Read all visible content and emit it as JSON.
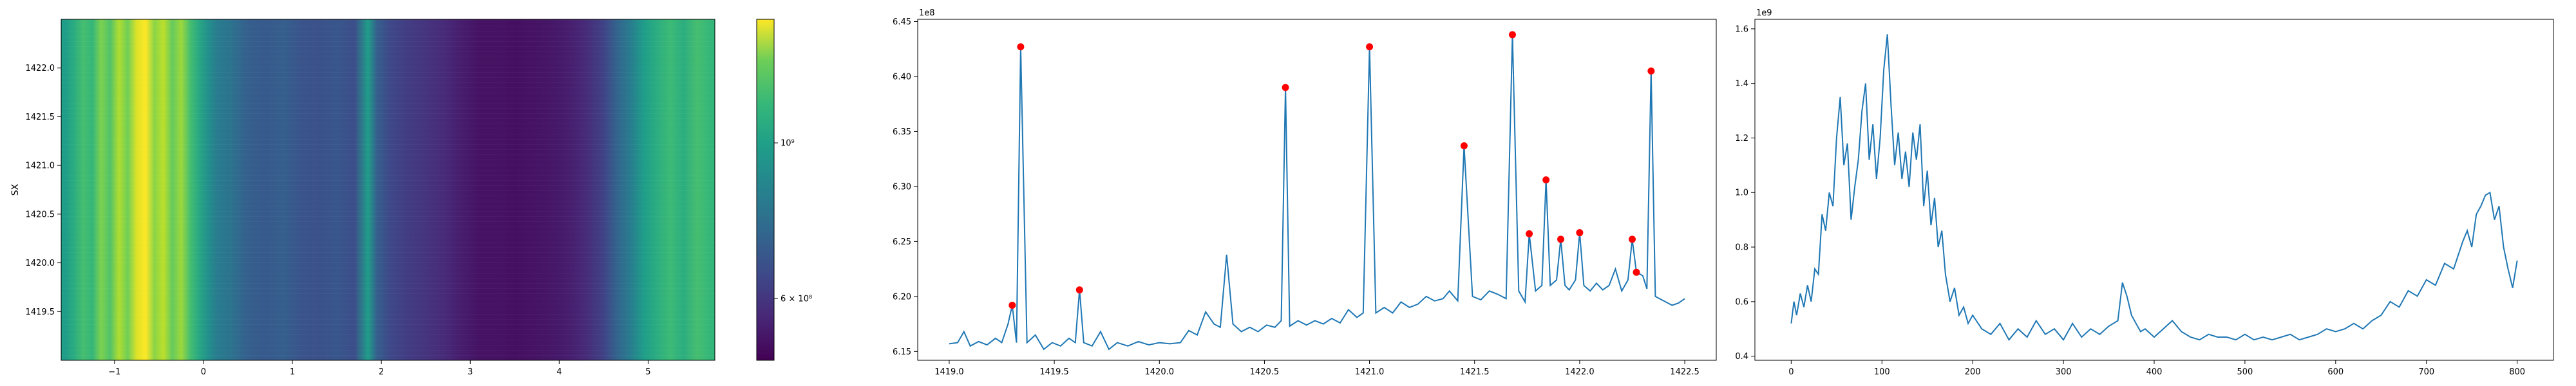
{
  "chart_data": [
    {
      "type": "heatmap",
      "xlabel": "",
      "ylabel": "SX",
      "xlim": [
        -1.6,
        5.75
      ],
      "ylim": [
        1419.0,
        1422.5
      ],
      "x_ticks": [
        -1,
        0,
        1,
        2,
        3,
        4,
        5
      ],
      "x_tick_labels": [
        "−1",
        "0",
        "1",
        "2",
        "3",
        "4",
        "5"
      ],
      "y_ticks": [
        1419.5,
        1420.0,
        1420.5,
        1421.0,
        1421.5,
        1422.0
      ],
      "y_tick_labels": [
        "1419.5",
        "1420.0",
        "1420.5",
        "1421.0",
        "1421.5",
        "1422.0"
      ],
      "colormap": "viridis",
      "colorbar": {
        "scale": "log",
        "ticks": [
          600000000.0,
          1000000000.0
        ],
        "tick_labels": [
          "6 × 10⁸",
          "10⁹"
        ]
      },
      "column_profile": {
        "x": [
          -1.55,
          -1.45,
          -1.35,
          -1.25,
          -1.15,
          -1.05,
          -0.95,
          -0.85,
          -0.75,
          -0.65,
          -0.55,
          -0.45,
          -0.35,
          -0.25,
          -0.15,
          -0.05,
          0.05,
          0.15,
          0.3,
          0.5,
          0.7,
          0.9,
          1.1,
          1.3,
          1.5,
          1.7,
          1.85,
          1.95,
          2.1,
          2.3,
          2.5,
          2.7,
          2.9,
          3.1,
          3.3,
          3.5,
          3.7,
          3.9,
          4.1,
          4.3,
          4.5,
          4.65,
          4.8,
          4.95,
          5.1,
          5.25,
          5.4,
          5.55,
          5.7
        ],
        "level": [
          0.55,
          0.62,
          0.7,
          0.66,
          0.8,
          0.72,
          0.88,
          0.78,
          0.95,
          1.0,
          0.82,
          0.9,
          0.76,
          0.85,
          0.7,
          0.6,
          0.5,
          0.42,
          0.38,
          0.3,
          0.28,
          0.3,
          0.26,
          0.25,
          0.27,
          0.24,
          0.55,
          0.3,
          0.22,
          0.18,
          0.15,
          0.12,
          0.08,
          0.05,
          0.05,
          0.04,
          0.05,
          0.06,
          0.08,
          0.12,
          0.2,
          0.32,
          0.42,
          0.55,
          0.62,
          0.68,
          0.62,
          0.7,
          0.66
        ]
      }
    },
    {
      "type": "line",
      "x_unit_label": "",
      "y_offset_label": "1e8",
      "xlim": [
        1418.85,
        1422.65
      ],
      "ylim": [
        6.142,
        6.452
      ],
      "x_ticks": [
        1419.0,
        1419.5,
        1420.0,
        1420.5,
        1421.0,
        1421.5,
        1422.0,
        1422.5
      ],
      "x_tick_labels": [
        "1419.0",
        "1419.5",
        "1420.0",
        "1420.5",
        "1421.0",
        "1421.5",
        "1422.0",
        "1422.5"
      ],
      "y_ticks": [
        6.15,
        6.2,
        6.25,
        6.3,
        6.35,
        6.4,
        6.45
      ],
      "y_tick_labels": [
        "6.15",
        "6.20",
        "6.25",
        "6.30",
        "6.35",
        "6.40",
        "6.45"
      ],
      "series": [
        {
          "x": [
            1419.0,
            1419.04,
            1419.07,
            1419.1,
            1419.14,
            1419.18,
            1419.22,
            1419.25,
            1419.28,
            1419.3,
            1419.32,
            1419.34,
            1419.37,
            1419.41,
            1419.45,
            1419.49,
            1419.53,
            1419.57,
            1419.6,
            1419.62,
            1419.64,
            1419.68,
            1419.72,
            1419.76,
            1419.8,
            1419.85,
            1419.9,
            1419.95,
            1420.0,
            1420.05,
            1420.1,
            1420.14,
            1420.18,
            1420.22,
            1420.26,
            1420.29,
            1420.32,
            1420.35,
            1420.39,
            1420.43,
            1420.47,
            1420.51,
            1420.55,
            1420.58,
            1420.6,
            1420.62,
            1420.66,
            1420.7,
            1420.74,
            1420.78,
            1420.82,
            1420.86,
            1420.9,
            1420.94,
            1420.97,
            1421.0,
            1421.03,
            1421.07,
            1421.11,
            1421.15,
            1421.19,
            1421.23,
            1421.27,
            1421.31,
            1421.35,
            1421.38,
            1421.42,
            1421.45,
            1421.49,
            1421.53,
            1421.57,
            1421.61,
            1421.65,
            1421.68,
            1421.71,
            1421.74,
            1421.76,
            1421.79,
            1421.82,
            1421.84,
            1421.86,
            1421.89,
            1421.91,
            1421.93,
            1421.95,
            1421.98,
            1422.0,
            1422.02,
            1422.05,
            1422.08,
            1422.11,
            1422.14,
            1422.17,
            1422.2,
            1422.23,
            1422.25,
            1422.27,
            1422.3,
            1422.32,
            1422.34,
            1422.36,
            1422.38,
            1422.41,
            1422.44,
            1422.47,
            1422.5
          ],
          "y": [
            6.157,
            6.158,
            6.168,
            6.155,
            6.159,
            6.156,
            6.162,
            6.158,
            6.175,
            6.192,
            6.158,
            6.427,
            6.158,
            6.165,
            6.152,
            6.158,
            6.155,
            6.162,
            6.158,
            6.206,
            6.158,
            6.155,
            6.168,
            6.152,
            6.158,
            6.155,
            6.159,
            6.156,
            6.158,
            6.157,
            6.158,
            6.169,
            6.165,
            6.186,
            6.175,
            6.172,
            6.238,
            6.175,
            6.168,
            6.172,
            6.168,
            6.174,
            6.172,
            6.178,
            6.39,
            6.173,
            6.178,
            6.174,
            6.178,
            6.175,
            6.18,
            6.176,
            6.188,
            6.181,
            6.185,
            6.427,
            6.185,
            6.19,
            6.185,
            6.195,
            6.19,
            6.193,
            6.2,
            6.196,
            6.198,
            6.205,
            6.196,
            6.337,
            6.2,
            6.197,
            6.205,
            6.202,
            6.198,
            6.438,
            6.205,
            6.195,
            6.257,
            6.205,
            6.21,
            6.306,
            6.21,
            6.215,
            6.252,
            6.21,
            6.206,
            6.215,
            6.258,
            6.21,
            6.205,
            6.212,
            6.206,
            6.21,
            6.225,
            6.205,
            6.215,
            6.252,
            6.222,
            6.219,
            6.207,
            6.405,
            6.2,
            6.198,
            6.195,
            6.192,
            6.194,
            6.198
          ]
        }
      ],
      "markers": {
        "x": [
          1419.3,
          1419.34,
          1419.62,
          1420.6,
          1421.0,
          1421.45,
          1421.68,
          1421.76,
          1421.84,
          1421.91,
          1422.0,
          1422.25,
          1422.27,
          1422.34
        ],
        "y": [
          6.192,
          6.427,
          6.206,
          6.39,
          6.427,
          6.337,
          6.438,
          6.257,
          6.306,
          6.252,
          6.258,
          6.252,
          6.222,
          6.405
        ],
        "color": "#ff0000"
      }
    },
    {
      "type": "line",
      "y_offset_label": "1e9",
      "xlim": [
        -40,
        840
      ],
      "ylim": [
        0.385,
        1.635
      ],
      "x_ticks": [
        0,
        100,
        200,
        300,
        400,
        500,
        600,
        700,
        800
      ],
      "x_tick_labels": [
        "0",
        "100",
        "200",
        "300",
        "400",
        "500",
        "600",
        "700",
        "800"
      ],
      "y_ticks": [
        0.4,
        0.6,
        0.8,
        1.0,
        1.2,
        1.4,
        1.6
      ],
      "y_tick_labels": [
        "0.4",
        "0.6",
        "0.8",
        "1.0",
        "1.2",
        "1.4",
        "1.6"
      ],
      "series": [
        {
          "x": [
            0,
            3,
            6,
            10,
            14,
            18,
            22,
            26,
            30,
            34,
            38,
            42,
            46,
            50,
            54,
            58,
            62,
            66,
            70,
            74,
            78,
            82,
            86,
            90,
            94,
            98,
            102,
            106,
            110,
            114,
            118,
            122,
            126,
            130,
            134,
            138,
            142,
            146,
            150,
            154,
            158,
            162,
            166,
            170,
            175,
            180,
            185,
            190,
            195,
            200,
            210,
            220,
            230,
            240,
            250,
            260,
            270,
            280,
            290,
            300,
            310,
            320,
            330,
            340,
            350,
            360,
            365,
            370,
            375,
            380,
            385,
            390,
            400,
            410,
            420,
            430,
            440,
            450,
            460,
            470,
            480,
            490,
            500,
            510,
            520,
            530,
            540,
            550,
            560,
            570,
            580,
            590,
            600,
            610,
            620,
            630,
            640,
            650,
            660,
            670,
            680,
            690,
            700,
            710,
            720,
            730,
            740,
            745,
            750,
            755,
            760,
            765,
            770,
            775,
            780,
            785,
            790,
            795,
            800
          ],
          "y": [
            0.52,
            0.6,
            0.55,
            0.63,
            0.58,
            0.66,
            0.6,
            0.72,
            0.7,
            0.92,
            0.86,
            1.0,
            0.95,
            1.2,
            1.35,
            1.1,
            1.18,
            0.9,
            1.02,
            1.12,
            1.3,
            1.4,
            1.12,
            1.25,
            1.05,
            1.2,
            1.45,
            1.58,
            1.32,
            1.1,
            1.22,
            1.05,
            1.15,
            1.02,
            1.22,
            1.12,
            1.25,
            0.95,
            1.08,
            0.88,
            0.98,
            0.8,
            0.86,
            0.7,
            0.6,
            0.65,
            0.55,
            0.58,
            0.52,
            0.55,
            0.5,
            0.48,
            0.52,
            0.46,
            0.5,
            0.47,
            0.53,
            0.48,
            0.5,
            0.46,
            0.52,
            0.47,
            0.5,
            0.48,
            0.51,
            0.53,
            0.67,
            0.62,
            0.55,
            0.52,
            0.49,
            0.5,
            0.47,
            0.5,
            0.53,
            0.49,
            0.47,
            0.46,
            0.48,
            0.47,
            0.47,
            0.46,
            0.48,
            0.46,
            0.47,
            0.46,
            0.47,
            0.48,
            0.46,
            0.47,
            0.48,
            0.5,
            0.49,
            0.5,
            0.52,
            0.5,
            0.53,
            0.55,
            0.6,
            0.58,
            0.64,
            0.62,
            0.68,
            0.66,
            0.74,
            0.72,
            0.82,
            0.86,
            0.8,
            0.92,
            0.95,
            0.99,
            1.0,
            0.9,
            0.95,
            0.8,
            0.72,
            0.65,
            0.75
          ]
        }
      ]
    }
  ],
  "colors": {
    "line": "#1f77b4",
    "marker": "#ff0000",
    "heat_low": "#440154",
    "heat_high": "#fde725"
  }
}
